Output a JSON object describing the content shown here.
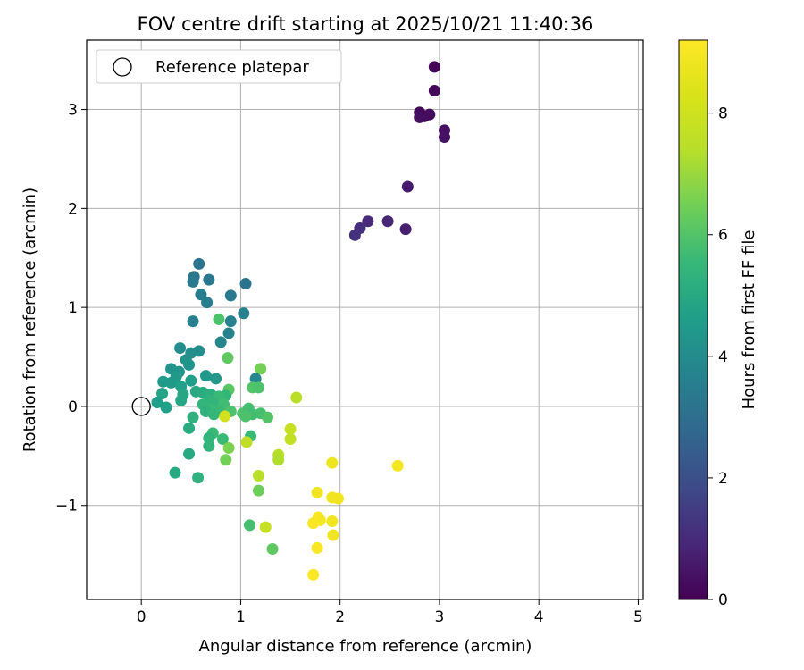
{
  "chart_data": {
    "type": "scatter",
    "title": "FOV centre drift starting at 2025/10/21 11:40:36",
    "xlabel": "Angular distance from reference (arcmin)",
    "ylabel": "Rotation from reference (arcmin)",
    "xlim": [
      -0.55,
      5.05
    ],
    "ylim": [
      -1.95,
      3.7
    ],
    "xticks": [
      0,
      1,
      2,
      3,
      4,
      5
    ],
    "yticks": [
      -1,
      0,
      1,
      2,
      3
    ],
    "grid": true,
    "legend": {
      "placement": "top-left",
      "entries": [
        "Reference platepar"
      ]
    },
    "reference_point": {
      "x": 0,
      "y": 0
    },
    "colorbar": {
      "label": "Hours from first FF file",
      "colormap": "viridis",
      "range": [
        0,
        9.2
      ],
      "ticks": [
        0,
        2,
        4,
        6,
        8
      ]
    },
    "points": [
      {
        "x": 2.95,
        "y": 3.43,
        "h": 0.1
      },
      {
        "x": 2.95,
        "y": 3.19,
        "h": 0.15
      },
      {
        "x": 2.8,
        "y": 2.97,
        "h": 0.2
      },
      {
        "x": 2.85,
        "y": 2.93,
        "h": 0.2
      },
      {
        "x": 2.9,
        "y": 2.95,
        "h": 0.25
      },
      {
        "x": 2.8,
        "y": 2.92,
        "h": 0.3
      },
      {
        "x": 3.05,
        "y": 2.79,
        "h": 0.35
      },
      {
        "x": 3.05,
        "y": 2.72,
        "h": 0.4
      },
      {
        "x": 2.68,
        "y": 2.22,
        "h": 0.6
      },
      {
        "x": 2.66,
        "y": 1.79,
        "h": 0.7
      },
      {
        "x": 2.48,
        "y": 1.87,
        "h": 0.9
      },
      {
        "x": 2.28,
        "y": 1.87,
        "h": 1.0
      },
      {
        "x": 2.2,
        "y": 1.8,
        "h": 1.1
      },
      {
        "x": 2.15,
        "y": 1.73,
        "h": 1.2
      },
      {
        "x": 0.58,
        "y": 1.44,
        "h": 3.2
      },
      {
        "x": 0.53,
        "y": 1.31,
        "h": 3.3
      },
      {
        "x": 0.68,
        "y": 1.28,
        "h": 3.3
      },
      {
        "x": 0.52,
        "y": 1.26,
        "h": 3.4
      },
      {
        "x": 1.05,
        "y": 1.24,
        "h": 3.2
      },
      {
        "x": 0.6,
        "y": 1.13,
        "h": 3.5
      },
      {
        "x": 0.9,
        "y": 1.12,
        "h": 3.4
      },
      {
        "x": 0.66,
        "y": 1.05,
        "h": 3.5
      },
      {
        "x": 1.03,
        "y": 0.94,
        "h": 3.6
      },
      {
        "x": 0.52,
        "y": 0.86,
        "h": 3.6
      },
      {
        "x": 0.9,
        "y": 0.86,
        "h": 3.6
      },
      {
        "x": 0.78,
        "y": 0.88,
        "h": 5.9
      },
      {
        "x": 0.88,
        "y": 0.74,
        "h": 3.7
      },
      {
        "x": 0.8,
        "y": 0.65,
        "h": 3.8
      },
      {
        "x": 0.39,
        "y": 0.59,
        "h": 4.0
      },
      {
        "x": 0.58,
        "y": 0.56,
        "h": 4.1
      },
      {
        "x": 0.5,
        "y": 0.54,
        "h": 4.1
      },
      {
        "x": 0.45,
        "y": 0.47,
        "h": 4.2
      },
      {
        "x": 0.87,
        "y": 0.49,
        "h": 6.2
      },
      {
        "x": 0.48,
        "y": 0.42,
        "h": 4.3
      },
      {
        "x": 0.3,
        "y": 0.38,
        "h": 4.3
      },
      {
        "x": 0.38,
        "y": 0.35,
        "h": 4.3
      },
      {
        "x": 0.35,
        "y": 0.3,
        "h": 4.4
      },
      {
        "x": 0.65,
        "y": 0.31,
        "h": 4.4
      },
      {
        "x": 1.2,
        "y": 0.38,
        "h": 6.5
      },
      {
        "x": 0.75,
        "y": 0.28,
        "h": 4.4
      },
      {
        "x": 1.15,
        "y": 0.28,
        "h": 3.8
      },
      {
        "x": 0.22,
        "y": 0.25,
        "h": 4.5
      },
      {
        "x": 0.3,
        "y": 0.24,
        "h": 4.5
      },
      {
        "x": 0.5,
        "y": 0.26,
        "h": 4.6
      },
      {
        "x": 0.4,
        "y": 0.2,
        "h": 4.7
      },
      {
        "x": 1.12,
        "y": 0.19,
        "h": 6.0
      },
      {
        "x": 1.18,
        "y": 0.19,
        "h": 5.9
      },
      {
        "x": 0.88,
        "y": 0.17,
        "h": 6.1
      },
      {
        "x": 0.21,
        "y": 0.13,
        "h": 4.8
      },
      {
        "x": 0.42,
        "y": 0.12,
        "h": 4.9
      },
      {
        "x": 0.55,
        "y": 0.15,
        "h": 5.0
      },
      {
        "x": 0.62,
        "y": 0.14,
        "h": 5.1
      },
      {
        "x": 0.7,
        "y": 0.12,
        "h": 5.2
      },
      {
        "x": 0.85,
        "y": 0.11,
        "h": 5.5
      },
      {
        "x": 0.78,
        "y": 0.1,
        "h": 5.6
      },
      {
        "x": 0.68,
        "y": 0.07,
        "h": 5.3
      },
      {
        "x": 0.4,
        "y": 0.06,
        "h": 4.9
      },
      {
        "x": 0.16,
        "y": 0.04,
        "h": 4.6
      },
      {
        "x": 0.62,
        "y": 0.02,
        "h": 5.4
      },
      {
        "x": 0.72,
        "y": 0.04,
        "h": 5.4
      },
      {
        "x": 0.83,
        "y": 0.02,
        "h": 5.7
      },
      {
        "x": 1.56,
        "y": 0.09,
        "h": 7.5
      },
      {
        "x": 0.25,
        "y": -0.01,
        "h": 4.7
      },
      {
        "x": 0.7,
        "y": -0.03,
        "h": 5.6
      },
      {
        "x": 0.65,
        "y": -0.05,
        "h": 5.3
      },
      {
        "x": 0.78,
        "y": -0.04,
        "h": 5.6
      },
      {
        "x": 0.9,
        "y": -0.05,
        "h": 5.9
      },
      {
        "x": 1.02,
        "y": -0.07,
        "h": 5.9
      },
      {
        "x": 1.08,
        "y": -0.02,
        "h": 5.8
      },
      {
        "x": 1.12,
        "y": -0.08,
        "h": 5.7
      },
      {
        "x": 0.73,
        "y": -0.08,
        "h": 5.5
      },
      {
        "x": 1.2,
        "y": -0.07,
        "h": 5.8
      },
      {
        "x": 1.05,
        "y": -0.1,
        "h": 5.9
      },
      {
        "x": 0.84,
        "y": -0.1,
        "h": 8.1
      },
      {
        "x": 1.27,
        "y": -0.11,
        "h": 6.0
      },
      {
        "x": 0.52,
        "y": -0.11,
        "h": 5.3
      },
      {
        "x": 0.48,
        "y": -0.22,
        "h": 5.1
      },
      {
        "x": 1.5,
        "y": -0.23,
        "h": 7.8
      },
      {
        "x": 0.72,
        "y": -0.27,
        "h": 5.6
      },
      {
        "x": 1.1,
        "y": -0.3,
        "h": 5.6
      },
      {
        "x": 0.68,
        "y": -0.32,
        "h": 5.4
      },
      {
        "x": 0.82,
        "y": -0.33,
        "h": 5.6
      },
      {
        "x": 1.5,
        "y": -0.33,
        "h": 7.7
      },
      {
        "x": 1.06,
        "y": -0.36,
        "h": 7.6
      },
      {
        "x": 0.68,
        "y": -0.4,
        "h": 5.4
      },
      {
        "x": 0.88,
        "y": -0.42,
        "h": 6.6
      },
      {
        "x": 0.48,
        "y": -0.48,
        "h": 5.0
      },
      {
        "x": 1.38,
        "y": -0.49,
        "h": 7.4
      },
      {
        "x": 1.38,
        "y": -0.54,
        "h": 7.3
      },
      {
        "x": 0.85,
        "y": -0.54,
        "h": 6.5
      },
      {
        "x": 1.92,
        "y": -0.57,
        "h": 8.8
      },
      {
        "x": 2.58,
        "y": -0.6,
        "h": 9.0
      },
      {
        "x": 0.34,
        "y": -0.67,
        "h": 5.0
      },
      {
        "x": 1.18,
        "y": -0.7,
        "h": 7.5
      },
      {
        "x": 0.57,
        "y": -0.72,
        "h": 5.3
      },
      {
        "x": 1.18,
        "y": -0.85,
        "h": 6.4
      },
      {
        "x": 1.77,
        "y": -0.87,
        "h": 8.9
      },
      {
        "x": 1.92,
        "y": -0.92,
        "h": 8.9
      },
      {
        "x": 1.98,
        "y": -0.93,
        "h": 8.9
      },
      {
        "x": 1.78,
        "y": -1.12,
        "h": 9.1
      },
      {
        "x": 1.8,
        "y": -1.15,
        "h": 9.0
      },
      {
        "x": 1.73,
        "y": -1.18,
        "h": 9.1
      },
      {
        "x": 1.92,
        "y": -1.16,
        "h": 8.9
      },
      {
        "x": 1.09,
        "y": -1.2,
        "h": 5.8
      },
      {
        "x": 1.25,
        "y": -1.22,
        "h": 7.8
      },
      {
        "x": 1.93,
        "y": -1.3,
        "h": 8.9
      },
      {
        "x": 1.32,
        "y": -1.44,
        "h": 6.2
      },
      {
        "x": 1.77,
        "y": -1.43,
        "h": 9.1
      },
      {
        "x": 1.73,
        "y": -1.7,
        "h": 9.2
      }
    ]
  }
}
